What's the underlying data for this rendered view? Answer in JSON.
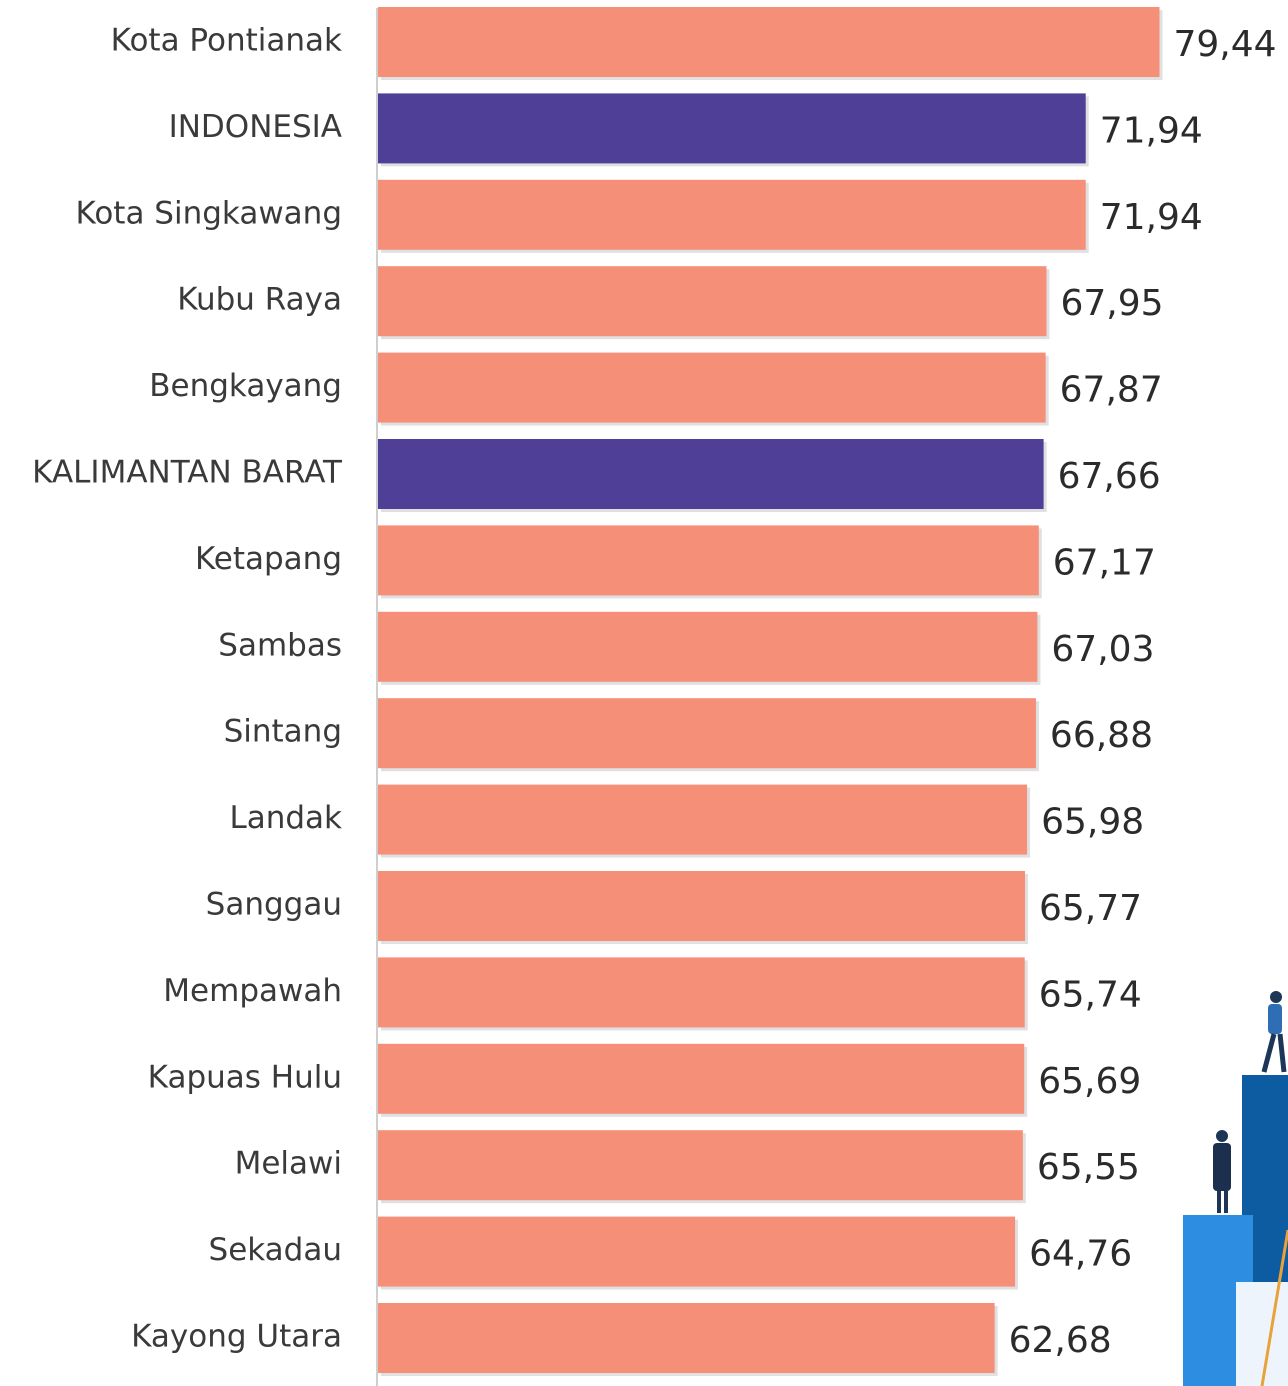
{
  "chart_data": {
    "type": "barh",
    "categories": [
      "Kota Pontianak",
      "INDONESIA",
      "Kota Singkawang",
      "Kubu Raya",
      "Bengkayang",
      "KALIMANTAN BARAT",
      "Ketapang",
      "Sambas",
      "Sintang",
      "Landak",
      "Sanggau",
      "Mempawah",
      "Kapuas Hulu",
      "Melawi",
      "Sekadau",
      "Kayong Utara"
    ],
    "values": [
      79.44,
      71.94,
      71.94,
      67.95,
      67.87,
      67.66,
      67.17,
      67.03,
      66.88,
      65.98,
      65.77,
      65.74,
      65.69,
      65.55,
      64.76,
      62.68
    ],
    "value_labels": [
      "79,44",
      "71,94",
      "71,94",
      "67,95",
      "67,87",
      "67,66",
      "67,17",
      "67,03",
      "66,88",
      "65,98",
      "65,77",
      "65,74",
      "65,69",
      "65,55",
      "64,76",
      "62,68"
    ],
    "colors": [
      "#f58f78",
      "#4f3f96",
      "#f58f78",
      "#f58f78",
      "#f58f78",
      "#4f3f96",
      "#f58f78",
      "#f58f78",
      "#f58f78",
      "#f58f78",
      "#f58f78",
      "#f58f78",
      "#f58f78",
      "#f58f78",
      "#f58f78",
      "#f58f78"
    ],
    "xlim": [
      0,
      80
    ]
  }
}
